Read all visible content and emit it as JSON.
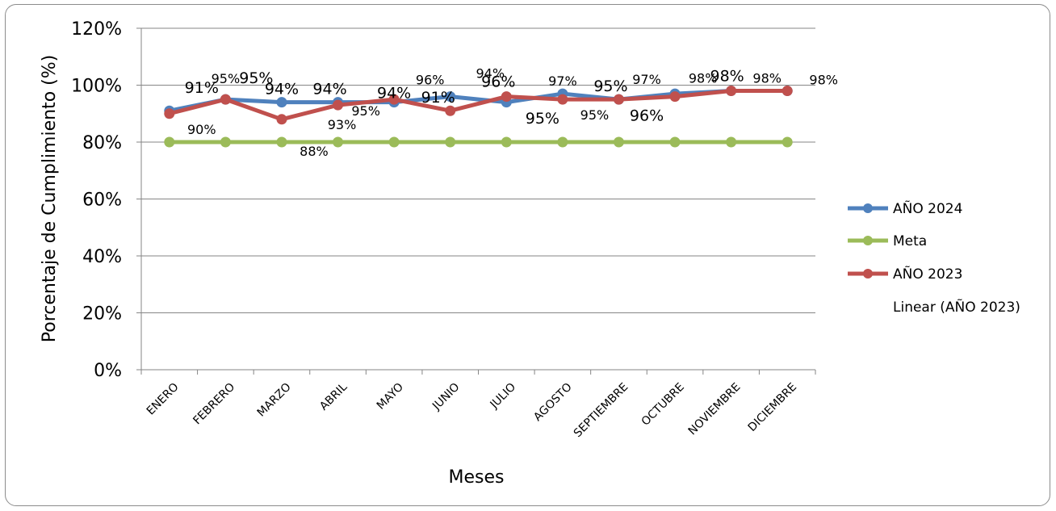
{
  "chart_data": {
    "type": "line",
    "title": "",
    "xlabel": "Meses",
    "ylabel": "Porcentaje de Cumplimiento (%)",
    "ylim": [
      0,
      1.2
    ],
    "ytick_labels": [
      "0%",
      "20%",
      "40%",
      "60%",
      "80%",
      "100%",
      "120%"
    ],
    "categories": [
      "ENERO",
      "FEBRERO",
      "MARZO",
      "ABRIL",
      "MAYO",
      "JUNIO",
      "JULIO",
      "AGOSTO",
      "SEPTIEMBRE",
      "OCTUBRE",
      "NOVIEMBRE",
      "DICIEMBRE"
    ],
    "grid": true,
    "legend_position": "right",
    "series": [
      {
        "name": "AÑO 2024",
        "color": "#4f81bd",
        "values": [
          0.91,
          0.95,
          0.94,
          0.94,
          0.94,
          0.96,
          0.94,
          0.97,
          0.95,
          0.97,
          0.98,
          0.98
        ],
        "labels": [
          "91%",
          "95%",
          "94%",
          "94%",
          "94%",
          "96%",
          "94%",
          "97%",
          "95%",
          "97%",
          "98%",
          "98%"
        ]
      },
      {
        "name": "Meta",
        "color": "#9bbb59",
        "values": [
          0.8,
          0.8,
          0.8,
          0.8,
          0.8,
          0.8,
          0.8,
          0.8,
          0.8,
          0.8,
          0.8,
          0.8
        ]
      },
      {
        "name": "AÑO 2023",
        "color": "#c0504d",
        "values": [
          0.9,
          0.95,
          0.88,
          0.93,
          0.95,
          0.91,
          0.96,
          0.95,
          0.95,
          0.96,
          0.98,
          0.98
        ],
        "labels": [
          "90%",
          "95%",
          "88%",
          "93%",
          "95%",
          "91%",
          "96%",
          "95%",
          "95%",
          "96%",
          "98%",
          "98%"
        ]
      }
    ],
    "trendline_legend": "Linear (AÑO 2023)"
  }
}
